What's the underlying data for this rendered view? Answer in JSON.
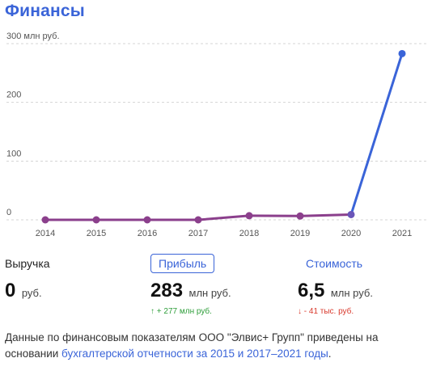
{
  "header": {
    "title": "Финансы"
  },
  "chart_data": {
    "type": "line",
    "ylabel": "300 млн руб.",
    "yticks": [
      "300 млн руб.",
      "200",
      "100",
      "0"
    ],
    "ytick_values": [
      300,
      200,
      100,
      0
    ],
    "ylim": [
      0,
      300
    ],
    "categories": [
      "2014",
      "2015",
      "2016",
      "2017",
      "2018",
      "2019",
      "2020",
      "2021"
    ],
    "series": [
      {
        "values": [
          0,
          0,
          0,
          0,
          7,
          6.5,
          9,
          283
        ]
      }
    ],
    "grid": true,
    "colors": {
      "line_low": "#8b3f8c",
      "line_high": "#3a64d8",
      "grid": "#d4d4d4"
    }
  },
  "metrics": [
    {
      "label": "Выручка",
      "value": "0",
      "unit": "руб.",
      "delta": ""
    },
    {
      "label": "Прибыль",
      "value": "283",
      "unit": "млн руб.",
      "delta": "↑ + 277 млн руб."
    },
    {
      "label": "Стоимость",
      "value": "6,5",
      "unit": "млн руб.",
      "delta": "↓ - 41 тыс. руб."
    }
  ],
  "note": {
    "text": "Данные по финансовым показателям ООО \"Элвис+ Групп\" приведены на основании ",
    "link": "бухгалтерской отчетности за 2015 и 2017–2021 годы",
    "end": "."
  }
}
